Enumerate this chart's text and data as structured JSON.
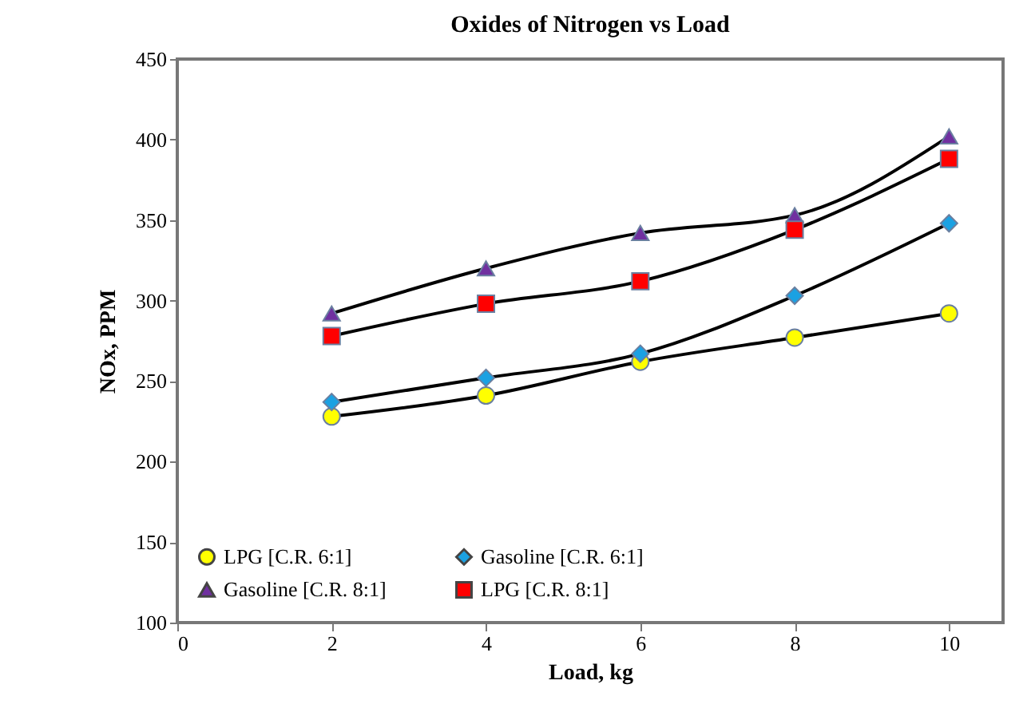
{
  "chart_data": {
    "type": "line",
    "title": "Oxides of Nitrogen vs Load",
    "xlabel": "Load, kg",
    "ylabel": "NOx, PPM",
    "x": [
      2,
      4,
      6,
      8,
      10
    ],
    "series": [
      {
        "name": "LPG [C.R. 6:1]",
        "color": "#ffff00",
        "marker": "circle",
        "values": [
          228,
          241,
          262,
          277,
          292
        ]
      },
      {
        "name": "Gasoline [C.R. 6:1]",
        "color": "#1ba1e2",
        "marker": "diamond",
        "values": [
          237,
          252,
          267,
          303,
          348
        ]
      },
      {
        "name": "Gasoline [C.R. 8:1]",
        "color": "#7030a0",
        "marker": "triangle",
        "values": [
          292,
          320,
          342,
          353,
          402
        ]
      },
      {
        "name": "LPG [C.R. 8:1]",
        "color": "#ff0000",
        "marker": "square",
        "values": [
          278,
          298,
          312,
          344,
          388
        ]
      }
    ],
    "xlim": [
      0,
      10.7
    ],
    "xticks": [
      0,
      2,
      4,
      6,
      8,
      10
    ],
    "ylim": [
      100,
      450
    ],
    "yticks": [
      100,
      150,
      200,
      250,
      300,
      350,
      400,
      450
    ],
    "grid": false,
    "legend": "bottom"
  }
}
